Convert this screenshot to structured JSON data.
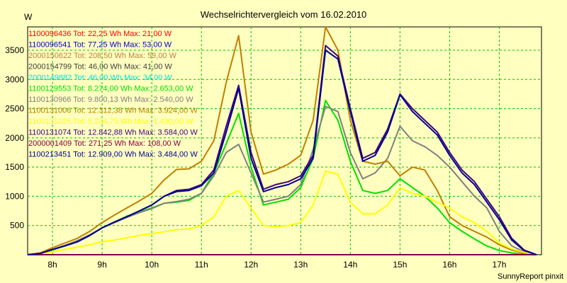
{
  "chart_data": {
    "type": "line",
    "title": "Wechselrichtervergleich vom 16.02.2010",
    "ylabel": "W",
    "xlabel": "",
    "footer": "SunnyReport pinxit",
    "grid": true,
    "x_ticks": [
      {
        "label": "8h",
        "value": 8
      },
      {
        "label": "9h",
        "value": 9
      },
      {
        "label": "10h",
        "value": 10
      },
      {
        "label": "11h",
        "value": 11
      },
      {
        "label": "12h",
        "value": 12
      },
      {
        "label": "13h",
        "value": 13
      },
      {
        "label": "14h",
        "value": 14
      },
      {
        "label": "15h",
        "value": 15
      },
      {
        "label": "16h",
        "value": 16
      },
      {
        "label": "17h",
        "value": 17
      }
    ],
    "y_ticks": [
      500,
      1000,
      1500,
      2000,
      2500,
      3000,
      3500
    ],
    "xlim": [
      7.5,
      17.85
    ],
    "ylim": [
      0,
      3900
    ],
    "x": [
      7.5,
      7.75,
      8,
      8.25,
      8.5,
      8.75,
      9,
      9.25,
      9.5,
      9.75,
      10,
      10.25,
      10.5,
      10.75,
      11,
      11.25,
      11.5,
      11.75,
      12,
      12.25,
      12.5,
      12.75,
      13,
      13.25,
      13.5,
      13.75,
      14,
      14.25,
      14.5,
      14.75,
      15,
      15.25,
      15.5,
      15.75,
      16,
      16.25,
      16.5,
      16.75,
      17,
      17.25,
      17.5,
      17.75
    ],
    "series": [
      {
        "name": "1100096436 Tot: 22,25 Wh Max: 21,00 W",
        "color": "#ff0000",
        "values": [
          0,
          0,
          0,
          0,
          0,
          0,
          0,
          0,
          0,
          0,
          0,
          0,
          0,
          0,
          0,
          0,
          0,
          0,
          0,
          0,
          0,
          0,
          0,
          0,
          0,
          0,
          0,
          0,
          0,
          0,
          0,
          0,
          0,
          0,
          0,
          0,
          0,
          0,
          0,
          0,
          0,
          0
        ]
      },
      {
        "name": "1100096541 Tot: 77,25 Wh Max: 53,00 W",
        "color": "#0000c0",
        "values": [
          0,
          0,
          0,
          0,
          0,
          0,
          0,
          0,
          0,
          0,
          0,
          0,
          0,
          0,
          0,
          0,
          0,
          0,
          0,
          0,
          0,
          0,
          0,
          0,
          0,
          0,
          0,
          0,
          0,
          0,
          0,
          0,
          0,
          0,
          0,
          0,
          0,
          0,
          0,
          0,
          0,
          0
        ]
      },
      {
        "name": "2000150622 Tot: 208,50 Wh Max: 59,00 W",
        "color": "#c08040",
        "values": [
          0,
          0,
          0,
          0,
          0,
          0,
          0,
          0,
          0,
          0,
          0,
          0,
          0,
          0,
          0,
          0,
          0,
          0,
          0,
          0,
          0,
          0,
          0,
          0,
          0,
          0,
          0,
          0,
          0,
          0,
          0,
          0,
          0,
          0,
          0,
          0,
          0,
          0,
          0,
          0,
          0,
          0
        ]
      },
      {
        "name": "2000154799 Tot: 46,00 Wh Max: 41,00 W",
        "color": "#404040",
        "values": [
          0,
          0,
          0,
          0,
          0,
          0,
          0,
          0,
          0,
          0,
          0,
          0,
          0,
          0,
          0,
          0,
          0,
          0,
          0,
          0,
          0,
          0,
          0,
          0,
          0,
          0,
          0,
          0,
          0,
          0,
          0,
          0,
          0,
          0,
          0,
          0,
          0,
          0,
          0,
          0,
          0,
          0
        ]
      },
      {
        "name": "2000149882 Tot: 46,00 Wh Max: 34,00 W",
        "color": "#00e0e0",
        "values": [
          0,
          0,
          0,
          0,
          0,
          0,
          0,
          0,
          0,
          0,
          0,
          0,
          0,
          0,
          0,
          0,
          0,
          0,
          0,
          0,
          0,
          0,
          0,
          0,
          0,
          0,
          0,
          0,
          0,
          0,
          0,
          0,
          0,
          0,
          0,
          0,
          0,
          0,
          0,
          0,
          0,
          0
        ]
      },
      {
        "name": "1100129553 Tot: 8.274,00 Wh Max: 2.653,00 W",
        "color": "#00e000",
        "values": [
          0,
          20,
          80,
          150,
          220,
          330,
          460,
          560,
          660,
          730,
          800,
          880,
          900,
          930,
          1050,
          1400,
          1900,
          2420,
          1500,
          850,
          900,
          950,
          1150,
          1650,
          2640,
          2300,
          1600,
          1100,
          1050,
          1100,
          1300,
          1150,
          1000,
          800,
          550,
          400,
          270,
          150,
          70,
          30,
          10,
          0
        ]
      },
      {
        "name": "1100130966 Tot: 9.800,13 Wh Max: 2.540,00 W",
        "color": "#808080",
        "values": [
          0,
          20,
          90,
          160,
          240,
          340,
          460,
          550,
          640,
          720,
          790,
          880,
          910,
          950,
          1050,
          1350,
          1750,
          1890,
          1400,
          900,
          950,
          1000,
          1200,
          1800,
          2540,
          2450,
          1750,
          1300,
          1400,
          1650,
          2200,
          1950,
          1850,
          1700,
          1500,
          1250,
          1000,
          800,
          400,
          150,
          50,
          0
        ]
      },
      {
        "name": "1100131006 Tot: 12.312,38 Wh Max: 3.924,00 W",
        "color": "#c08000",
        "values": [
          0,
          30,
          120,
          200,
          280,
          400,
          550,
          680,
          800,
          920,
          1050,
          1280,
          1460,
          1470,
          1600,
          1950,
          2950,
          3750,
          2100,
          1380,
          1450,
          1550,
          1700,
          2300,
          3900,
          3500,
          2300,
          1600,
          1550,
          1600,
          1350,
          1500,
          1450,
          1100,
          650,
          500,
          400,
          300,
          170,
          80,
          30,
          0
        ]
      },
      {
        "name": "1100131025 Tot: 5.234,75 Wh Max: 1.430,00 W",
        "color": "#ffff00",
        "values": [
          0,
          10,
          50,
          90,
          130,
          170,
          220,
          250,
          290,
          330,
          360,
          390,
          430,
          440,
          500,
          650,
          1000,
          1100,
          800,
          500,
          480,
          500,
          550,
          850,
          1430,
          1380,
          900,
          700,
          700,
          850,
          1150,
          1050,
          1000,
          900,
          800,
          650,
          550,
          400,
          200,
          100,
          40,
          0
        ]
      },
      {
        "name": "1100131074 Tot: 12.842,88 Wh Max: 3.584,00 W",
        "color": "#400080",
        "values": [
          0,
          20,
          90,
          150,
          220,
          330,
          460,
          560,
          650,
          750,
          850,
          1000,
          1100,
          1120,
          1200,
          1450,
          2200,
          2900,
          1750,
          1120,
          1200,
          1250,
          1350,
          1700,
          3580,
          3400,
          2500,
          1650,
          1750,
          2150,
          2750,
          2500,
          2300,
          2100,
          1750,
          1450,
          1250,
          950,
          650,
          280,
          80,
          0
        ]
      },
      {
        "name": "2000001409 Tot: 271,25 Wh Max: 108,00 W",
        "color": "#800040",
        "values": [
          0,
          0,
          0,
          0,
          0,
          0,
          0,
          0,
          0,
          0,
          0,
          0,
          0,
          0,
          0,
          0,
          0,
          0,
          0,
          0,
          0,
          0,
          0,
          0,
          0,
          0,
          0,
          0,
          0,
          0,
          0,
          0,
          0,
          0,
          0,
          0,
          0,
          0,
          0,
          0,
          0,
          0
        ]
      },
      {
        "name": "1100213451 Tot: 12.909,00 Wh Max: 3.484,00 W",
        "color": "#000090",
        "values": [
          0,
          20,
          90,
          150,
          220,
          330,
          460,
          560,
          650,
          750,
          850,
          1000,
          1080,
          1100,
          1180,
          1400,
          2100,
          2850,
          1650,
          1080,
          1150,
          1200,
          1300,
          1650,
          3500,
          3350,
          2450,
          1600,
          1700,
          2100,
          2740,
          2450,
          2250,
          2050,
          1700,
          1400,
          1200,
          900,
          600,
          250,
          70,
          0
        ]
      }
    ]
  }
}
